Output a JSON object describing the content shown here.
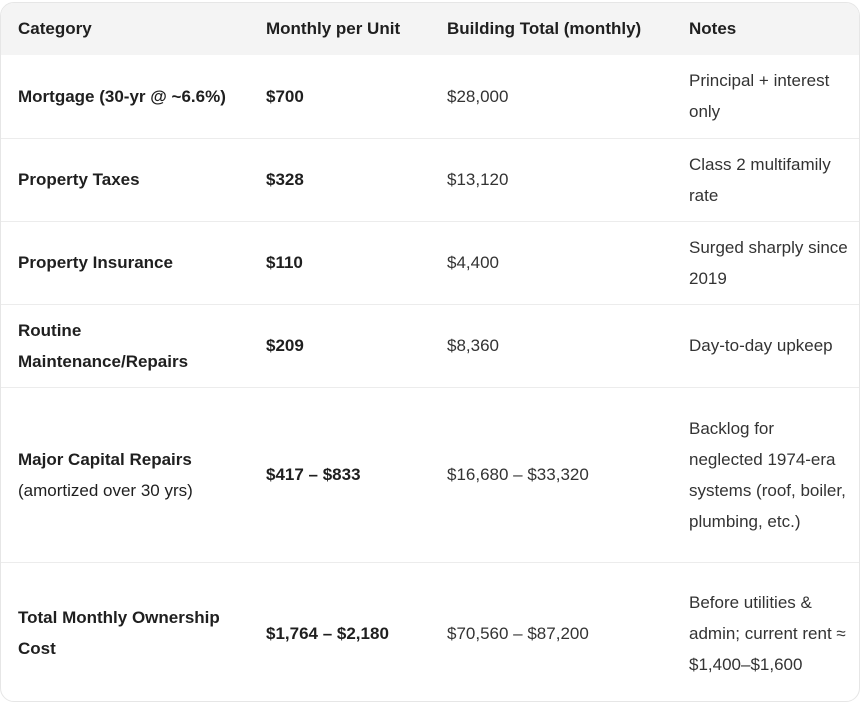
{
  "table": {
    "headers": [
      "Category",
      "Monthly per Unit",
      "Building Total (monthly)",
      "Notes"
    ],
    "rows": [
      {
        "category": "Mortgage (30-yr @ ~6.6%)",
        "category_sub": "",
        "per_unit": "$700",
        "building_total": "$28,000",
        "notes": "Principal + interest only"
      },
      {
        "category": "Property Taxes",
        "category_sub": "",
        "per_unit": "$328",
        "building_total": "$13,120",
        "notes": "Class 2 multifamily rate"
      },
      {
        "category": "Property Insurance",
        "category_sub": "",
        "per_unit": "$110",
        "building_total": "$4,400",
        "notes": "Surged sharply since 2019"
      },
      {
        "category": "Routine Maintenance/Repairs",
        "category_sub": "",
        "per_unit": "$209",
        "building_total": "$8,360",
        "notes": "Day-to-day upkeep"
      },
      {
        "category": "Major Capital Repairs",
        "category_sub": "(amortized over 30 yrs)",
        "per_unit": "$417 – $833",
        "building_total": "$16,680 – $33,320",
        "notes": "Backlog for neglected 1974-era systems (roof, boiler, plumbing, etc.)"
      },
      {
        "category": "Total Monthly Ownership Cost",
        "category_sub": "",
        "per_unit": "$1,764 – $2,180",
        "building_total": "$70,560 – $87,200",
        "notes": "Before utilities & admin; current rent ≈ $1,400–$1,600"
      }
    ]
  }
}
